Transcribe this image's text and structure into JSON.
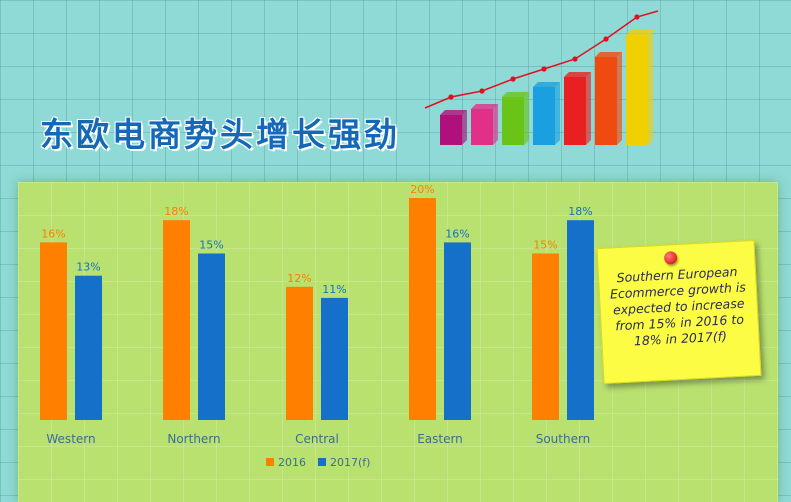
{
  "title": "东欧电商势头增长强劲",
  "note": {
    "text": "Southern European Ecommerce growth is expected to increase from 15% in 2016 to 18% in 2017(f)"
  },
  "colors": {
    "series_2016": "#ff7f00",
    "series_2017": "#1470c8",
    "title": "#1568b8",
    "panel": "#b9e16f",
    "note": "#fcfc45"
  },
  "decor": {
    "icon": "growth-bar-chart-icon",
    "bar_colors": [
      "#b0107a",
      "#e03088",
      "#6ac418",
      "#1aa0e0",
      "#e82020",
      "#f04a10",
      "#f0d000"
    ]
  },
  "chart_data": {
    "type": "bar",
    "categories": [
      "Western",
      "Northern",
      "Central",
      "Eastern",
      "Southern"
    ],
    "series": [
      {
        "name": "2016",
        "values": [
          16,
          18,
          12,
          20,
          15
        ],
        "labels": [
          "16%",
          "18%",
          "12%",
          "20%",
          "15%"
        ]
      },
      {
        "name": "2017(f)",
        "values": [
          13,
          15,
          11,
          16,
          18
        ],
        "labels": [
          "13%",
          "15%",
          "11%",
          "16%",
          "18%"
        ]
      }
    ],
    "title": "",
    "xlabel": "",
    "ylabel": "",
    "ylim": [
      0,
      20
    ],
    "legend": "bottom-center",
    "grid": false
  }
}
